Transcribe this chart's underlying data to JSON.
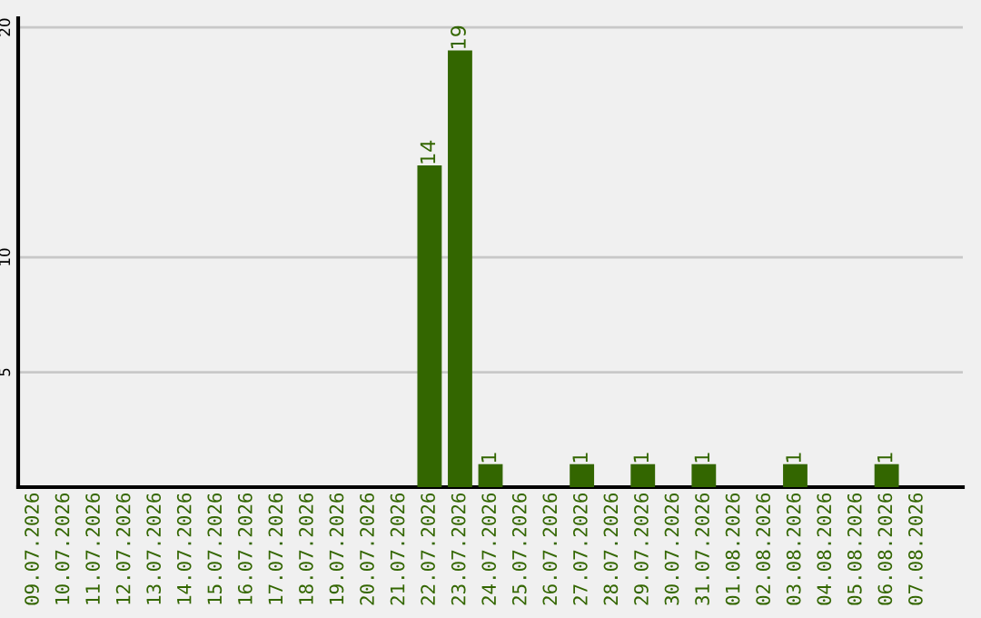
{
  "chart_data": {
    "type": "bar",
    "categories": [
      "09.07.2026",
      "10.07.2026",
      "11.07.2026",
      "12.07.2026",
      "13.07.2026",
      "14.07.2026",
      "15.07.2026",
      "16.07.2026",
      "17.07.2026",
      "18.07.2026",
      "19.07.2026",
      "20.07.2026",
      "21.07.2026",
      "22.07.2026",
      "23.07.2026",
      "24.07.2026",
      "25.07.2026",
      "26.07.2026",
      "27.07.2026",
      "28.07.2026",
      "29.07.2026",
      "30.07.2026",
      "31.07.2026",
      "01.08.2026",
      "02.08.2026",
      "03.08.2026",
      "04.08.2026",
      "05.08.2026",
      "06.08.2026",
      "07.08.2026"
    ],
    "values": [
      0,
      0,
      0,
      0,
      0,
      0,
      0,
      0,
      0,
      0,
      0,
      0,
      0,
      14,
      19,
      1,
      0,
      0,
      1,
      0,
      1,
      0,
      1,
      0,
      0,
      1,
      0,
      0,
      1,
      0
    ],
    "value_labels": [
      null,
      null,
      null,
      null,
      null,
      null,
      null,
      null,
      null,
      null,
      null,
      null,
      null,
      "14",
      "19",
      "1",
      null,
      null,
      "1",
      null,
      "1",
      null,
      "1",
      null,
      null,
      "1",
      null,
      null,
      "1",
      null
    ],
    "color": "#336600",
    "ylim": [
      0,
      20.4
    ],
    "yticks": [
      5,
      10,
      20
    ],
    "grid": "y",
    "legend": false
  }
}
